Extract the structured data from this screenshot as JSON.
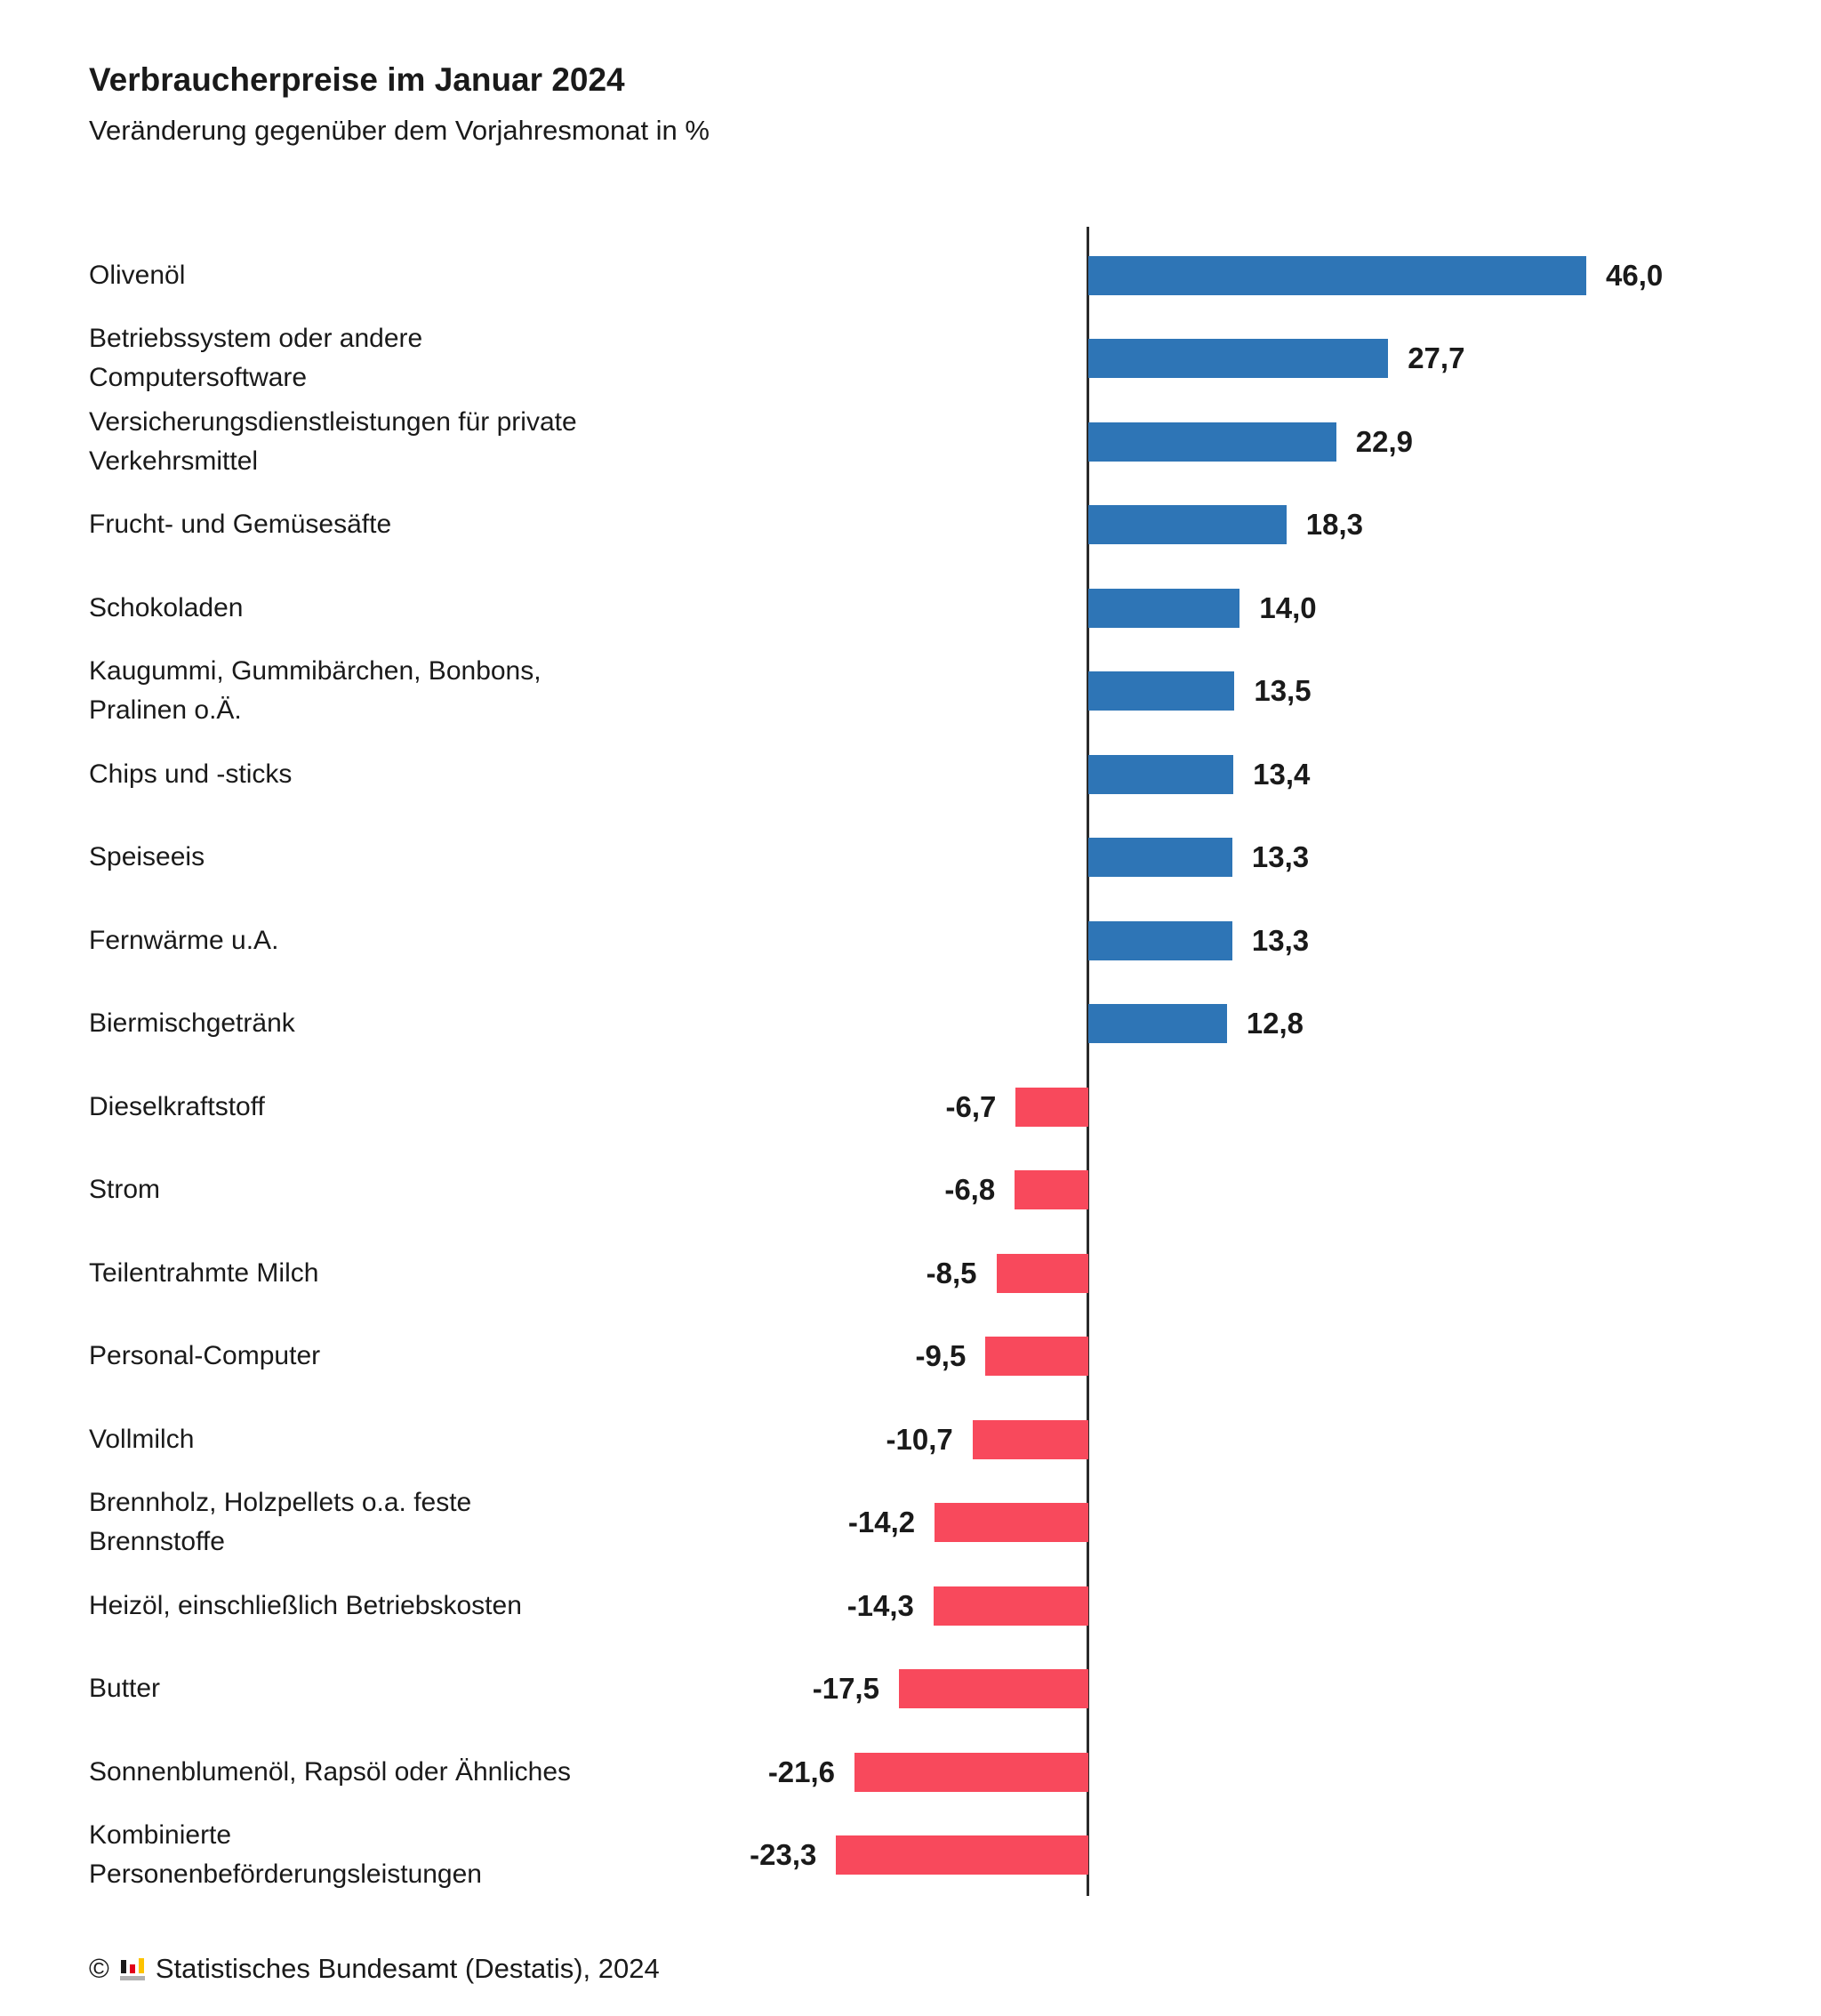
{
  "header": {
    "title": "Verbraucherpreise im Januar 2024",
    "subtitle": "Veränderung gegenüber dem Vorjahresmonat in %"
  },
  "chart_data": {
    "type": "bar",
    "orientation": "horizontal",
    "title": "Verbraucherpreise im Januar 2024",
    "subtitle": "Veränderung gegenüber dem Vorjahresmonat in %",
    "unit": "%",
    "xlim": [
      -23.3,
      46.0
    ],
    "grid": false,
    "legend": false,
    "positive_color": "#2e75b6",
    "negative_color": "#f8495c",
    "categories": [
      "Olivenöl",
      "Betriebssystem oder andere Computersoftware",
      "Versicherungsdienstleistungen für private Verkehrsmittel",
      "Frucht- und Gemüsesäfte",
      "Schokoladen",
      "Kaugummi, Gummibärchen, Bonbons, Pralinen o.Ä.",
      "Chips und -sticks",
      "Speiseeis",
      "Fernwärme u.A.",
      "Biermischgetränk",
      "Dieselkraftstoff",
      "Strom",
      "Teilentrahmte Milch",
      "Personal-Computer",
      "Vollmilch",
      "Brennholz, Holzpellets o.a. feste Brennstoffe",
      "Heizöl, einschließlich Betriebskosten",
      "Butter",
      "Sonnenblumenöl, Rapsöl oder Ähnliches",
      "Kombinierte Personenbeförderungsleistungen"
    ],
    "values": [
      46.0,
      27.7,
      22.9,
      18.3,
      14.0,
      13.5,
      13.4,
      13.3,
      13.3,
      12.8,
      -6.7,
      -6.8,
      -8.5,
      -9.5,
      -10.7,
      -14.2,
      -14.3,
      -17.5,
      -21.6,
      -23.3
    ],
    "value_labels": [
      "46,0",
      "27,7",
      "22,9",
      "18,3",
      "14,0",
      "13,5",
      "13,4",
      "13,3",
      "13,3",
      "12,8",
      "-6,7",
      "-6,8",
      "-8,5",
      "-9,5",
      "-10,7",
      "-14,2",
      "-14,3",
      "-17,5",
      "-21,6",
      "-23,3"
    ]
  },
  "footer": {
    "copyright": "©",
    "source": "Statistisches Bundesamt (Destatis), 2024"
  }
}
